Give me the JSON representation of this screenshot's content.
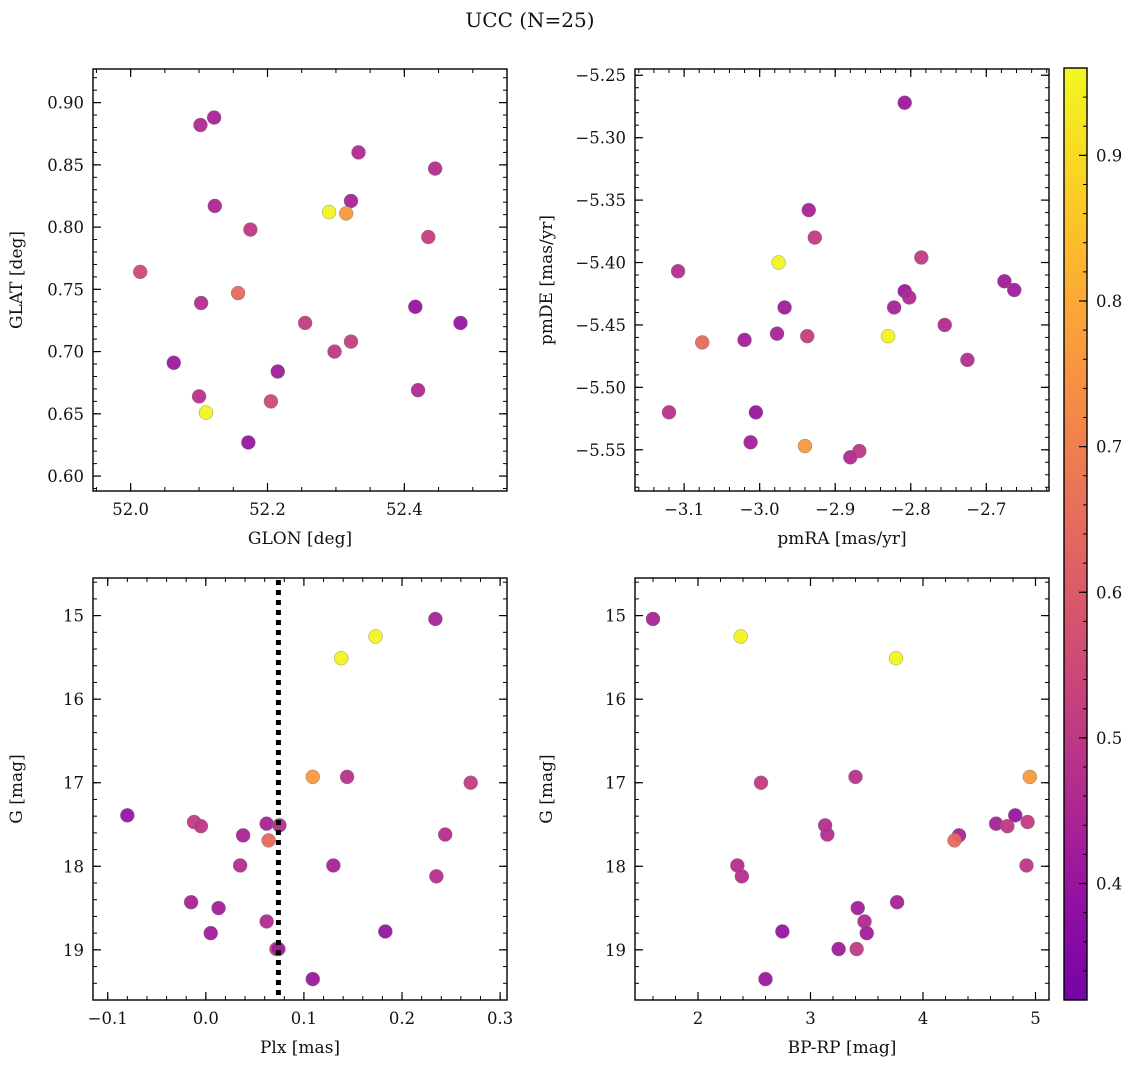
{
  "figure": {
    "title": "UCC (N=25)"
  },
  "colormap": {
    "name": "plasma",
    "range": [
      0.32,
      0.96
    ],
    "ticks": [
      {
        "value": 0.4,
        "label": "0.4"
      },
      {
        "value": 0.5,
        "label": "0.5"
      },
      {
        "value": 0.6,
        "label": "0.6"
      },
      {
        "value": 0.7,
        "label": "0.7"
      },
      {
        "value": 0.8,
        "label": "0.8"
      },
      {
        "value": 0.9,
        "label": "0.9"
      }
    ]
  },
  "chart_data": [
    {
      "type": "scatter",
      "xlabel": "GLON [deg]",
      "ylabel": "GLAT [deg]",
      "xlim": [
        51.945,
        52.55
      ],
      "ylim": [
        0.588,
        0.927
      ],
      "xticks": [
        {
          "v": 52.0,
          "label": "52.0"
        },
        {
          "v": 52.2,
          "label": "52.2"
        },
        {
          "v": 52.4,
          "label": "52.4"
        }
      ],
      "yticks": [
        {
          "v": 0.6,
          "label": "0.60"
        },
        {
          "v": 0.65,
          "label": "0.65"
        },
        {
          "v": 0.7,
          "label": "0.70"
        },
        {
          "v": 0.75,
          "label": "0.75"
        },
        {
          "v": 0.8,
          "label": "0.80"
        },
        {
          "v": 0.85,
          "label": "0.85"
        },
        {
          "v": 0.9,
          "label": "0.90"
        }
      ],
      "xminor": 0.05,
      "yminor": 0.01,
      "points": [
        {
          "x": 52.122,
          "y": 0.888,
          "c": 0.44
        },
        {
          "x": 52.102,
          "y": 0.882,
          "c": 0.46
        },
        {
          "x": 52.333,
          "y": 0.86,
          "c": 0.46
        },
        {
          "x": 52.445,
          "y": 0.847,
          "c": 0.47
        },
        {
          "x": 52.322,
          "y": 0.821,
          "c": 0.44
        },
        {
          "x": 52.123,
          "y": 0.817,
          "c": 0.45
        },
        {
          "x": 52.29,
          "y": 0.812,
          "c": 0.95
        },
        {
          "x": 52.315,
          "y": 0.811,
          "c": 0.76
        },
        {
          "x": 52.175,
          "y": 0.798,
          "c": 0.5
        },
        {
          "x": 52.435,
          "y": 0.792,
          "c": 0.52
        },
        {
          "x": 52.014,
          "y": 0.764,
          "c": 0.55
        },
        {
          "x": 52.157,
          "y": 0.747,
          "c": 0.64
        },
        {
          "x": 52.103,
          "y": 0.739,
          "c": 0.47
        },
        {
          "x": 52.416,
          "y": 0.736,
          "c": 0.4
        },
        {
          "x": 52.482,
          "y": 0.723,
          "c": 0.4
        },
        {
          "x": 52.255,
          "y": 0.723,
          "c": 0.51
        },
        {
          "x": 52.322,
          "y": 0.708,
          "c": 0.52
        },
        {
          "x": 52.298,
          "y": 0.7,
          "c": 0.5
        },
        {
          "x": 52.063,
          "y": 0.691,
          "c": 0.41
        },
        {
          "x": 52.215,
          "y": 0.684,
          "c": 0.42
        },
        {
          "x": 52.42,
          "y": 0.669,
          "c": 0.46
        },
        {
          "x": 52.1,
          "y": 0.664,
          "c": 0.48
        },
        {
          "x": 52.205,
          "y": 0.66,
          "c": 0.55
        },
        {
          "x": 52.11,
          "y": 0.651,
          "c": 0.95
        },
        {
          "x": 52.172,
          "y": 0.627,
          "c": 0.4
        }
      ]
    },
    {
      "type": "scatter",
      "xlabel": "pmRA [mas/yr]",
      "ylabel": "pmDE [mas/yr]",
      "xlim": [
        -3.165,
        -2.617
      ],
      "ylim": [
        -5.583,
        -5.245
      ],
      "xticks": [
        {
          "v": -3.1,
          "label": "−3.1"
        },
        {
          "v": -3.0,
          "label": "−3.0"
        },
        {
          "v": -2.9,
          "label": "−2.9"
        },
        {
          "v": -2.8,
          "label": "−2.8"
        },
        {
          "v": -2.7,
          "label": "−2.7"
        }
      ],
      "yticks": [
        {
          "v": -5.55,
          "label": "−5.55"
        },
        {
          "v": -5.5,
          "label": "−5.50"
        },
        {
          "v": -5.45,
          "label": "−5.45"
        },
        {
          "v": -5.4,
          "label": "−5.40"
        },
        {
          "v": -5.35,
          "label": "−5.35"
        },
        {
          "v": -5.3,
          "label": "−5.30"
        },
        {
          "v": -5.25,
          "label": "−5.25"
        }
      ],
      "xminor": 0.02,
      "yminor": 0.01,
      "points": [
        {
          "x": -2.808,
          "y": -5.272,
          "c": 0.41
        },
        {
          "x": -2.935,
          "y": -5.358,
          "c": 0.44
        },
        {
          "x": -2.927,
          "y": -5.38,
          "c": 0.51
        },
        {
          "x": -2.975,
          "y": -5.4,
          "c": 0.95
        },
        {
          "x": -2.786,
          "y": -5.396,
          "c": 0.51
        },
        {
          "x": -3.108,
          "y": -5.407,
          "c": 0.47
        },
        {
          "x": -2.676,
          "y": -5.415,
          "c": 0.42
        },
        {
          "x": -2.663,
          "y": -5.422,
          "c": 0.42
        },
        {
          "x": -2.808,
          "y": -5.423,
          "c": 0.41
        },
        {
          "x": -2.802,
          "y": -5.428,
          "c": 0.46
        },
        {
          "x": -2.822,
          "y": -5.436,
          "c": 0.44
        },
        {
          "x": -2.967,
          "y": -5.436,
          "c": 0.42
        },
        {
          "x": -2.755,
          "y": -5.45,
          "c": 0.46
        },
        {
          "x": -2.977,
          "y": -5.457,
          "c": 0.44
        },
        {
          "x": -2.937,
          "y": -5.459,
          "c": 0.52
        },
        {
          "x": -2.83,
          "y": -5.459,
          "c": 0.95
        },
        {
          "x": -3.02,
          "y": -5.462,
          "c": 0.43
        },
        {
          "x": -3.076,
          "y": -5.464,
          "c": 0.64
        },
        {
          "x": -2.725,
          "y": -5.478,
          "c": 0.47
        },
        {
          "x": -3.005,
          "y": -5.52,
          "c": 0.4
        },
        {
          "x": -3.12,
          "y": -5.52,
          "c": 0.48
        },
        {
          "x": -3.012,
          "y": -5.544,
          "c": 0.43
        },
        {
          "x": -2.94,
          "y": -5.547,
          "c": 0.76
        },
        {
          "x": -2.868,
          "y": -5.551,
          "c": 0.5
        },
        {
          "x": -2.88,
          "y": -5.556,
          "c": 0.46
        }
      ]
    },
    {
      "type": "scatter",
      "xlabel": "Plx [mas]",
      "ylabel": "G [mag]",
      "xlim": [
        -0.115,
        0.307
      ],
      "ylim": [
        19.6,
        14.55
      ],
      "xticks": [
        {
          "v": -0.1,
          "label": "−0.1"
        },
        {
          "v": 0.0,
          "label": "0.0"
        },
        {
          "v": 0.1,
          "label": "0.1"
        },
        {
          "v": 0.2,
          "label": "0.2"
        },
        {
          "v": 0.3,
          "label": "0.3"
        }
      ],
      "yticks": [
        {
          "v": 15,
          "label": "15"
        },
        {
          "v": 16,
          "label": "16"
        },
        {
          "v": 17,
          "label": "17"
        },
        {
          "v": 18,
          "label": "18"
        },
        {
          "v": 19,
          "label": "19"
        }
      ],
      "xminor": 0.02,
      "yminor": 0.2,
      "vline": 0.074,
      "points": [
        {
          "x": 0.234,
          "y": 15.04,
          "c": 0.44
        },
        {
          "x": 0.173,
          "y": 15.25,
          "c": 0.95
        },
        {
          "x": 0.138,
          "y": 15.51,
          "c": 0.95
        },
        {
          "x": 0.109,
          "y": 16.93,
          "c": 0.76
        },
        {
          "x": 0.144,
          "y": 16.93,
          "c": 0.48
        },
        {
          "x": 0.27,
          "y": 17.0,
          "c": 0.51
        },
        {
          "x": -0.08,
          "y": 17.39,
          "c": 0.4
        },
        {
          "x": -0.012,
          "y": 17.47,
          "c": 0.51
        },
        {
          "x": 0.062,
          "y": 17.49,
          "c": 0.44
        },
        {
          "x": -0.005,
          "y": 17.52,
          "c": 0.5
        },
        {
          "x": 0.075,
          "y": 17.51,
          "c": 0.47
        },
        {
          "x": 0.038,
          "y": 17.63,
          "c": 0.44
        },
        {
          "x": 0.244,
          "y": 17.62,
          "c": 0.47
        },
        {
          "x": 0.064,
          "y": 17.69,
          "c": 0.64
        },
        {
          "x": 0.035,
          "y": 17.99,
          "c": 0.47
        },
        {
          "x": 0.13,
          "y": 17.99,
          "c": 0.44
        },
        {
          "x": 0.235,
          "y": 18.12,
          "c": 0.47
        },
        {
          "x": -0.015,
          "y": 18.43,
          "c": 0.44
        },
        {
          "x": 0.013,
          "y": 18.5,
          "c": 0.43
        },
        {
          "x": 0.062,
          "y": 18.66,
          "c": 0.46
        },
        {
          "x": 0.005,
          "y": 18.8,
          "c": 0.42
        },
        {
          "x": 0.183,
          "y": 18.78,
          "c": 0.4
        },
        {
          "x": 0.072,
          "y": 18.99,
          "c": 0.51
        },
        {
          "x": 0.074,
          "y": 18.99,
          "c": 0.42
        },
        {
          "x": 0.109,
          "y": 19.35,
          "c": 0.41
        }
      ]
    },
    {
      "type": "scatter",
      "xlabel": "BP-RP [mag]",
      "ylabel": "G [mag]",
      "xlim": [
        1.44,
        5.12
      ],
      "ylim": [
        19.6,
        14.55
      ],
      "xticks": [
        {
          "v": 2,
          "label": "2"
        },
        {
          "v": 3,
          "label": "3"
        },
        {
          "v": 4,
          "label": "4"
        },
        {
          "v": 5,
          "label": "5"
        }
      ],
      "yticks": [
        {
          "v": 15,
          "label": "15"
        },
        {
          "v": 16,
          "label": "16"
        },
        {
          "v": 17,
          "label": "17"
        },
        {
          "v": 18,
          "label": "18"
        },
        {
          "v": 19,
          "label": "19"
        }
      ],
      "xminor": 0.2,
      "yminor": 0.2,
      "points": [
        {
          "x": 1.6,
          "y": 15.04,
          "c": 0.44
        },
        {
          "x": 2.38,
          "y": 15.25,
          "c": 0.95
        },
        {
          "x": 3.76,
          "y": 15.51,
          "c": 0.95
        },
        {
          "x": 4.95,
          "y": 16.93,
          "c": 0.76
        },
        {
          "x": 3.4,
          "y": 16.93,
          "c": 0.48
        },
        {
          "x": 2.56,
          "y": 17.0,
          "c": 0.51
        },
        {
          "x": 4.82,
          "y": 17.39,
          "c": 0.4
        },
        {
          "x": 4.93,
          "y": 17.47,
          "c": 0.51
        },
        {
          "x": 4.65,
          "y": 17.49,
          "c": 0.44
        },
        {
          "x": 4.75,
          "y": 17.52,
          "c": 0.5
        },
        {
          "x": 3.13,
          "y": 17.51,
          "c": 0.47
        },
        {
          "x": 4.32,
          "y": 17.63,
          "c": 0.44
        },
        {
          "x": 3.15,
          "y": 17.62,
          "c": 0.47
        },
        {
          "x": 4.28,
          "y": 17.69,
          "c": 0.64
        },
        {
          "x": 2.35,
          "y": 17.99,
          "c": 0.47
        },
        {
          "x": 4.92,
          "y": 17.99,
          "c": 0.5
        },
        {
          "x": 2.39,
          "y": 18.12,
          "c": 0.47
        },
        {
          "x": 3.77,
          "y": 18.43,
          "c": 0.44
        },
        {
          "x": 3.42,
          "y": 18.5,
          "c": 0.43
        },
        {
          "x": 3.48,
          "y": 18.66,
          "c": 0.46
        },
        {
          "x": 3.5,
          "y": 18.8,
          "c": 0.42
        },
        {
          "x": 2.75,
          "y": 18.78,
          "c": 0.4
        },
        {
          "x": 3.25,
          "y": 18.99,
          "c": 0.42
        },
        {
          "x": 3.41,
          "y": 18.99,
          "c": 0.51
        },
        {
          "x": 2.6,
          "y": 19.35,
          "c": 0.41
        }
      ]
    }
  ]
}
